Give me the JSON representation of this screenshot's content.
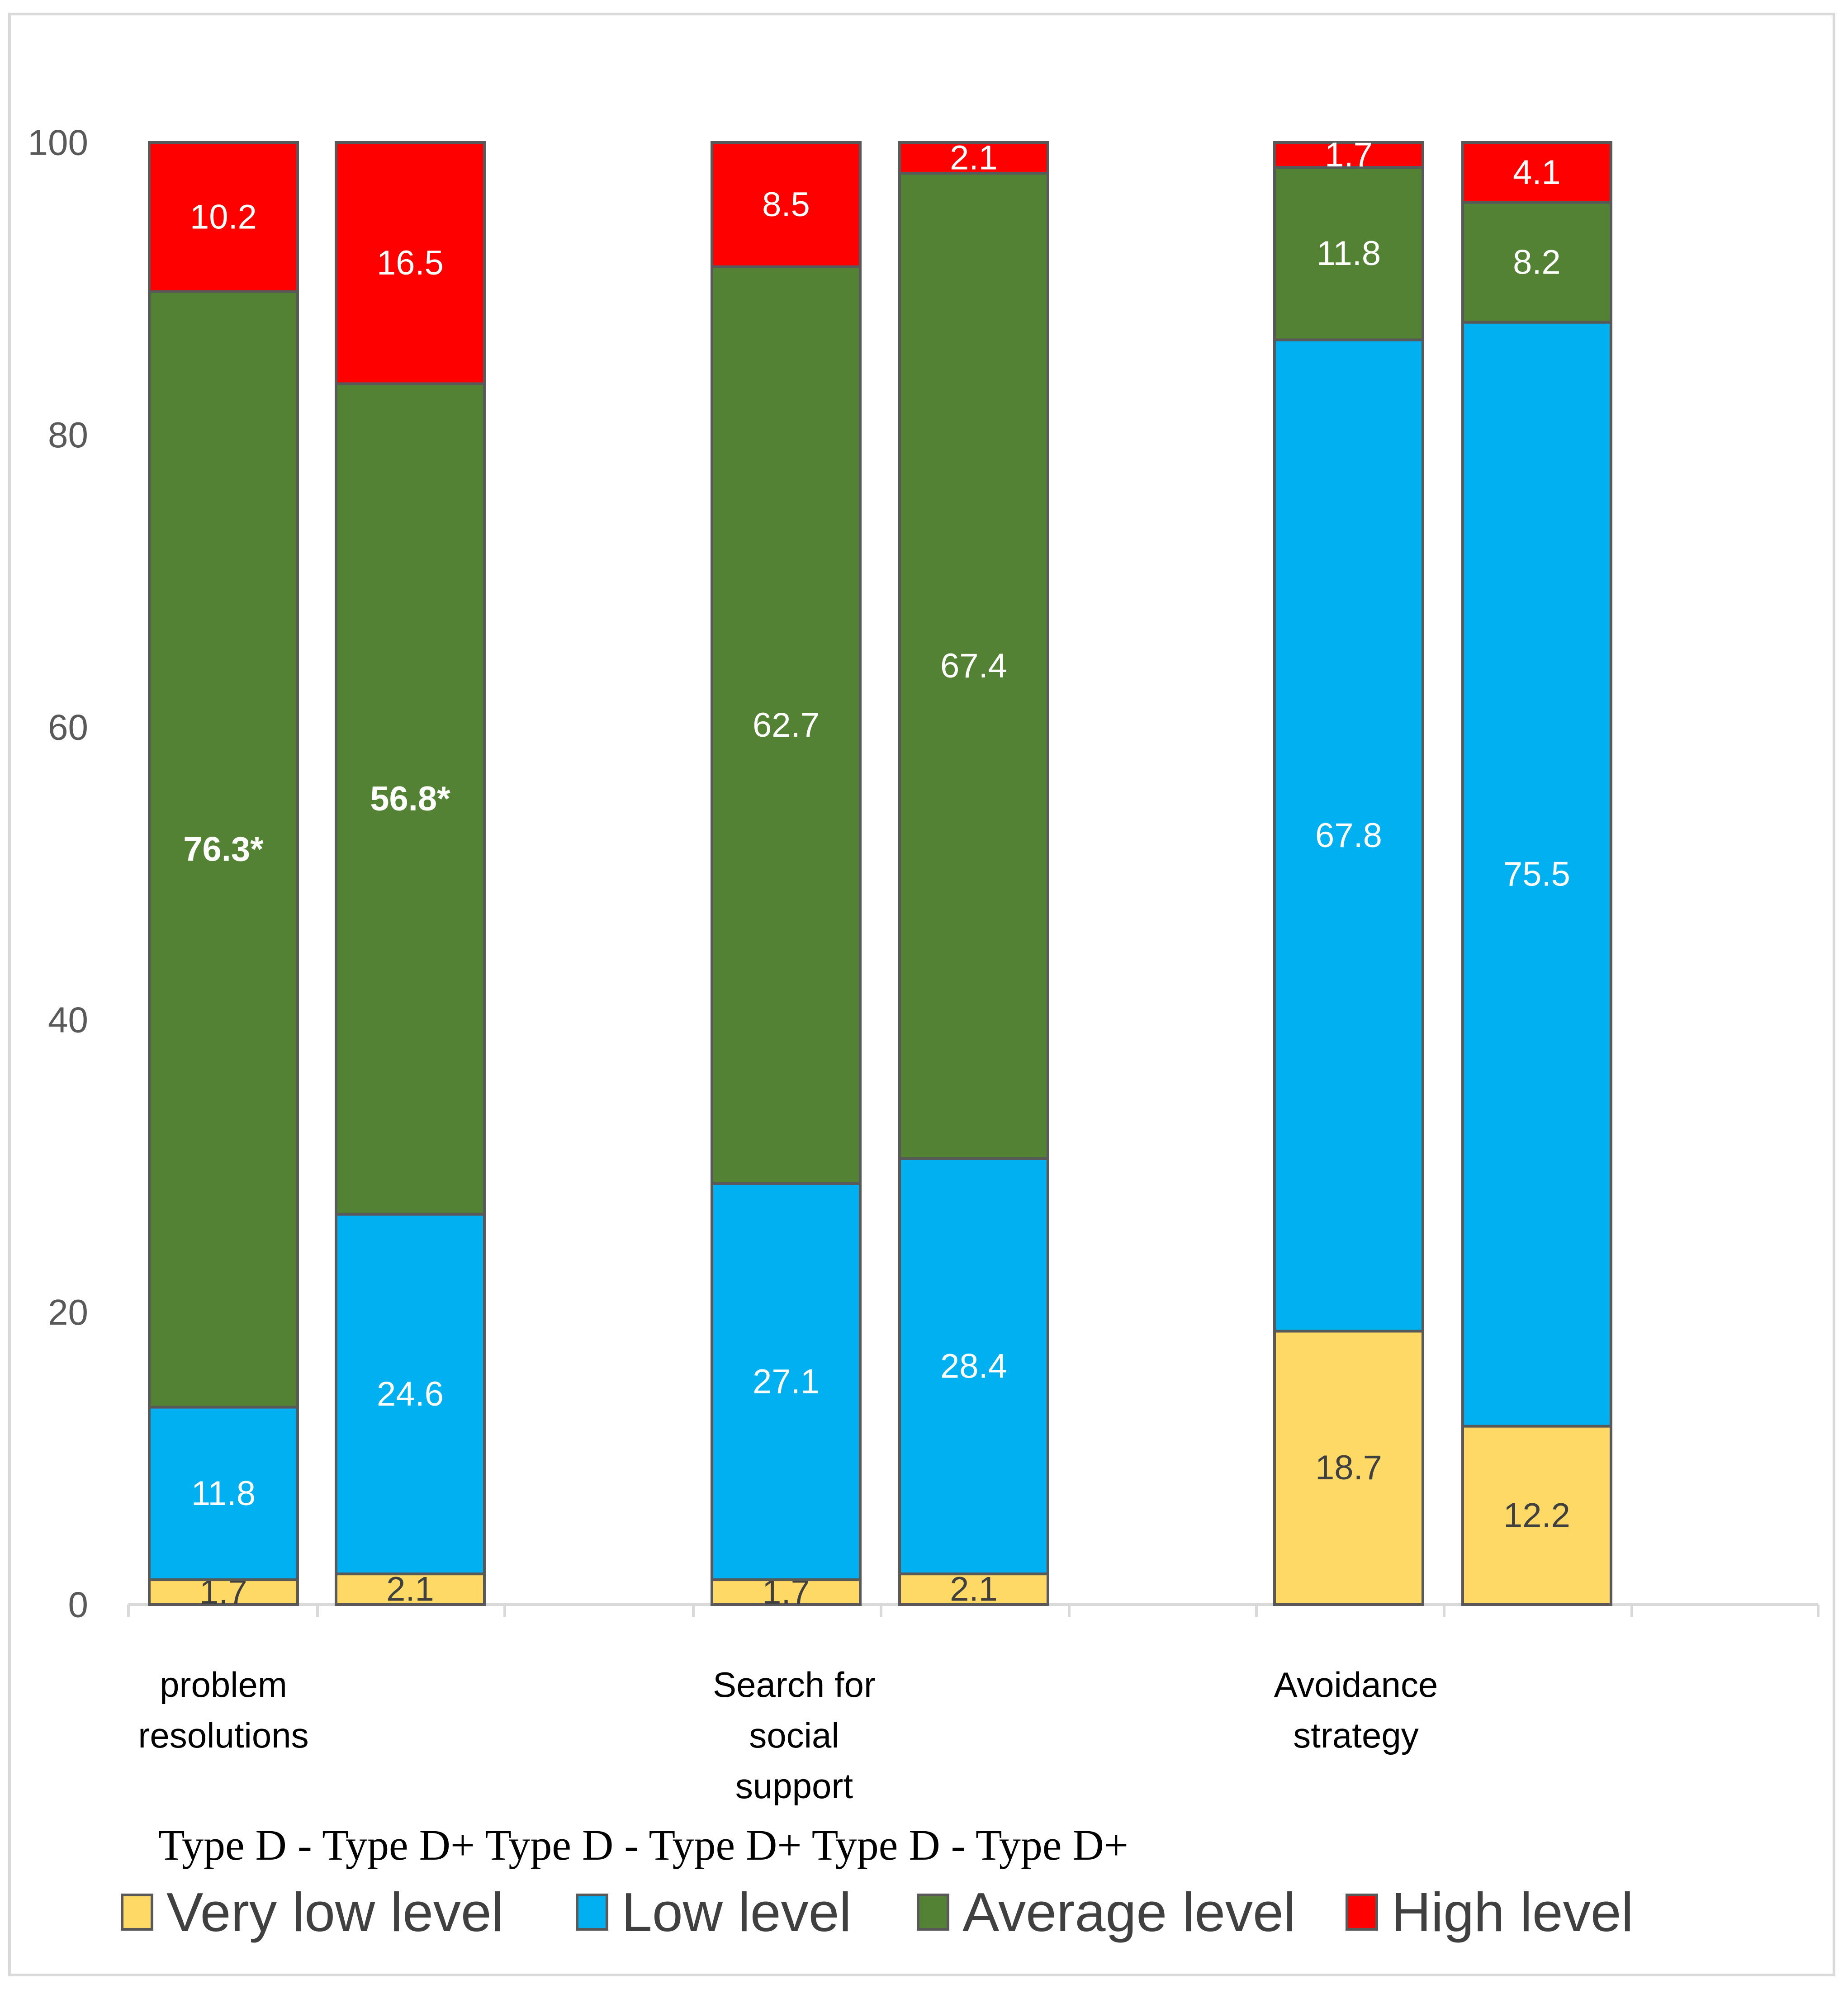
{
  "chart_data": {
    "type": "bar",
    "stacked": true,
    "ylim": [
      0,
      100
    ],
    "yticks": [
      "0",
      "20",
      "40",
      "60",
      "80",
      "100"
    ],
    "groups": [
      "problem resolutions",
      "Search for social support",
      "Avoidance strategy"
    ],
    "group_label_lines": [
      [
        "problem",
        "resolutions"
      ],
      [
        "Search for",
        "social",
        "support"
      ],
      [
        "Avoidance",
        "strategy"
      ]
    ],
    "bar_subgroups": [
      "Type D -",
      "Type D+"
    ],
    "subgroup_caption": "Type D - Type D+ Type D - Type D+ Type D - Type D+",
    "series": [
      {
        "name": "Very low level",
        "color": "#FFD966",
        "label_color": "#404040",
        "values": [
          1.7,
          2.1,
          1.7,
          2.1,
          18.7,
          12.2
        ],
        "labels": [
          "1.7",
          "2.1",
          "1.7",
          "2.1",
          "18.7",
          "12.2"
        ]
      },
      {
        "name": "Low level",
        "color": "#00B0F0",
        "label_color": "#FFFFFF",
        "values": [
          11.8,
          24.6,
          27.1,
          28.4,
          67.8,
          75.5
        ],
        "labels": [
          "11.8",
          "24.6",
          "27.1",
          "28.4",
          "67.8",
          "75.5"
        ]
      },
      {
        "name": "Average level",
        "color": "#548235",
        "label_color": "#FFFFFF",
        "values": [
          76.3,
          56.8,
          62.7,
          67.4,
          11.8,
          8.2
        ],
        "labels": [
          "76.3*",
          "56.8*",
          "62.7",
          "67.4",
          "11.8",
          "8.2"
        ],
        "bold": [
          true,
          true,
          false,
          false,
          false,
          false
        ]
      },
      {
        "name": "High level",
        "color": "#FF0000",
        "label_color": "#FFFFFF",
        "values": [
          10.2,
          16.5,
          8.5,
          2.1,
          1.7,
          4.1
        ],
        "labels": [
          "10.2",
          "16.5",
          "8.5",
          "2.1",
          "1.7",
          "4.1"
        ]
      }
    ],
    "legend": {
      "position": "bottom",
      "entries": [
        "Very low level",
        " Low level",
        "Average level",
        "High level"
      ]
    }
  }
}
